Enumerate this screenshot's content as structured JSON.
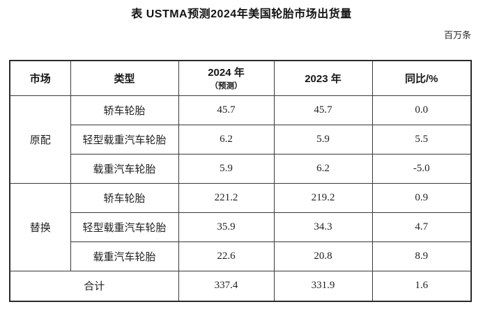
{
  "title": "表 USTMA预测2024年美国轮胎市场出货量",
  "unit_label": "百万条",
  "colors": {
    "background": "#ffffff",
    "text": "#1f1f1f",
    "border": "#383838",
    "outer_border": "#2b2b2b"
  },
  "table": {
    "headers": {
      "market": "市场",
      "type": "类型",
      "y2024_line1": "2024 年",
      "y2024_line2": "（预测）",
      "y2023": "2023 年",
      "yoy": "同比/%"
    },
    "groups": [
      {
        "market": "原配",
        "rows": [
          {
            "type": "轿车轮胎",
            "y2024": "45.7",
            "y2023": "45.7",
            "yoy": "0.0"
          },
          {
            "type": "轻型载重汽车轮胎",
            "y2024": "6.2",
            "y2023": "5.9",
            "yoy": "5.5"
          },
          {
            "type": "载重汽车轮胎",
            "y2024": "5.9",
            "y2023": "6.2",
            "yoy": "-5.0"
          }
        ]
      },
      {
        "market": "替换",
        "rows": [
          {
            "type": "轿车轮胎",
            "y2024": "221.2",
            "y2023": "219.2",
            "yoy": "0.9"
          },
          {
            "type": "轻型载重汽车轮胎",
            "y2024": "35.9",
            "y2023": "34.3",
            "yoy": "4.7"
          },
          {
            "type": "载重汽车轮胎",
            "y2024": "22.6",
            "y2023": "20.8",
            "yoy": "8.9"
          }
        ]
      }
    ],
    "total": {
      "label": "合计",
      "y2024": "337.4",
      "y2023": "331.9",
      "yoy": "1.6"
    }
  }
}
